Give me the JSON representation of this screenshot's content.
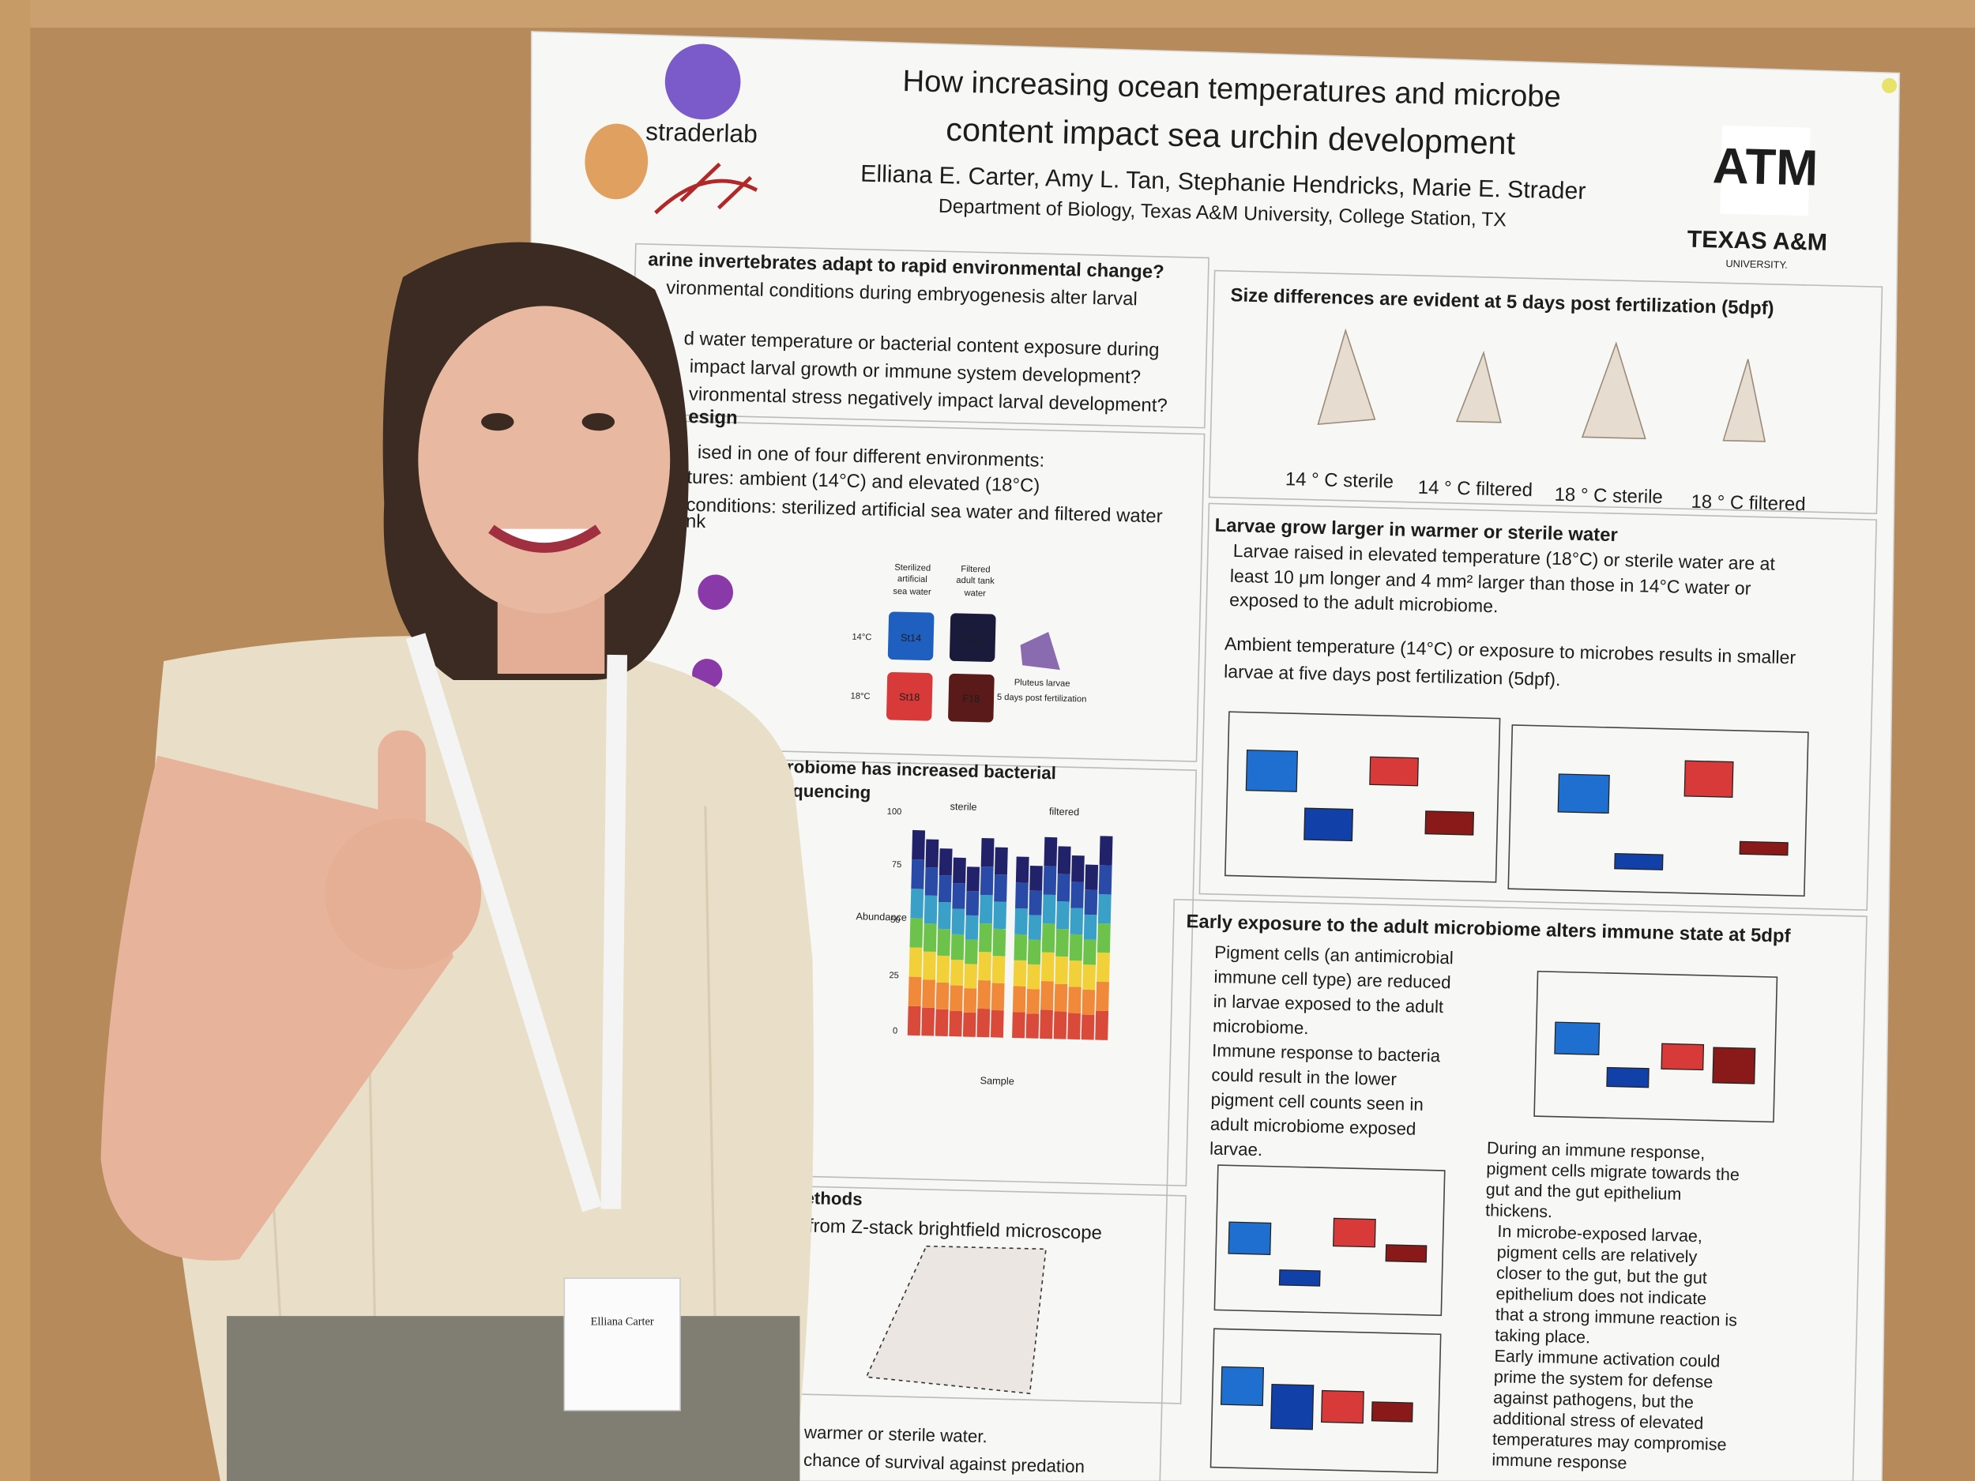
{
  "poster": {
    "logo": "straderlab",
    "title": [
      "How increasing ocean temperatures and microbe",
      "content impact sea urchin development"
    ],
    "authors": "Elliana E. Carter, Amy L. Tan, Stephanie Hendricks, Marie E. Strader",
    "department": "Department of Biology, Texas A&M University, College Station, TX",
    "university": [
      "ATM",
      "TEXAS A&M",
      "UNIVERSITY."
    ],
    "left_column": [
      "arine invertebrates adapt to rapid environmental change?",
      "vironmental conditions during embryogenesis alter larval",
      "d water temperature or bacterial content exposure during",
      "impact larval growth or immune system development?",
      "vironmental stress negatively impact larval development?",
      "esign",
      "ised in one of four different environments:",
      "tures: ambient (14°C) and elevated (18°C)",
      "conditions: sterilized artificial sea water and filtered water",
      "nk",
      "robiome has increased bacterial",
      "quencing",
      "methods",
      "ll from Z-stack brightfield microscope",
      "n warmer or sterile water.",
      "d chance of survival against predation"
    ],
    "design_labels": [
      "Sterilized",
      "artificial",
      "sea water",
      "Filtered",
      "adult tank",
      "water",
      "14°C",
      "18°C",
      "St14",
      "F14",
      "St18",
      "F18",
      "Pluteus larvae",
      "5 days post fertilization"
    ],
    "chart_labels": [
      "sterile",
      "filtered",
      "Abundance",
      "Sample",
      "100",
      "75",
      "50",
      "25",
      "0"
    ],
    "right_column": {
      "size_heading": "Size differences are evident at 5 days post fertilization (5dpf)",
      "size_labels": [
        "14 ° C sterile",
        "14 ° C filtered",
        "18 ° C sterile",
        "18 ° C filtered"
      ],
      "growth_heading": "Larvae grow larger in warmer or sterile water",
      "growth_lines": [
        "Larvae raised in elevated temperature (18°C) or sterile water are at",
        "least 10 μm longer and 4 mm² larger than those in 14°C  water or",
        "exposed to the adult microbiome.",
        "Ambient temperature (14°C) or exposure to microbes results in smaller",
        "larvae at five days post fertilization (5dpf)."
      ],
      "immune_heading": "Early exposure to the adult microbiome alters immune state at 5dpf",
      "immune_left": [
        "Pigment cells (an antimicrobial",
        "immune cell type) are reduced",
        "in larvae exposed to the adult",
        "microbiome.",
        "Immune response to bacteria",
        "could result in the lower",
        "pigment cell counts seen in",
        "adult microbiome exposed",
        "larvae."
      ],
      "immune_right": [
        "During an immune response,",
        "pigment cells migrate towards the",
        "gut and the gut epithelium",
        "thickens.",
        "In microbe-exposed larvae,",
        "pigment cells are relatively",
        "closer to the gut, but the gut",
        "epithelium does not indicate",
        "that a strong immune reaction is",
        "taking place.",
        "Early immune activation could",
        "prime the system for defense",
        "against pathogens, but the",
        "additional stress of elevated",
        "temperatures may compromise",
        "immune response"
      ]
    }
  },
  "badge": {
    "name": "Elliana Carter"
  }
}
